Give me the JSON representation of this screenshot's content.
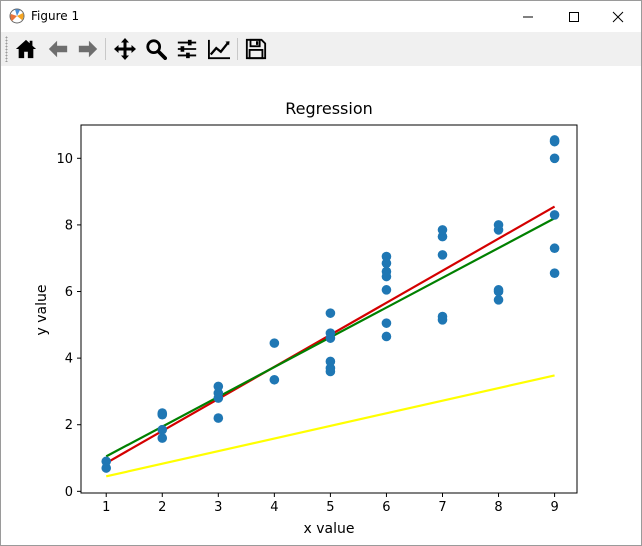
{
  "window": {
    "title": "Figure 1"
  },
  "toolbar": {
    "buttons": [
      {
        "icon": "home-icon",
        "tooltip": "Home"
      },
      {
        "icon": "back-arrow-icon",
        "tooltip": "Back"
      },
      {
        "icon": "forward-arrow-icon",
        "tooltip": "Forward"
      },
      {
        "icon": "pan-icon",
        "tooltip": "Pan"
      },
      {
        "icon": "zoom-icon",
        "tooltip": "Zoom"
      },
      {
        "icon": "subplots-icon",
        "tooltip": "Subplots"
      },
      {
        "icon": "edit-axis-icon",
        "tooltip": "Customize"
      },
      {
        "icon": "save-icon",
        "tooltip": "Save"
      }
    ]
  },
  "chart_data": {
    "type": "scatter",
    "title": "Regression",
    "xlabel": "x value",
    "ylabel": "y value",
    "xlim": [
      0.55,
      9.4
    ],
    "ylim": [
      -0.05,
      11.0
    ],
    "xticks": [
      1,
      2,
      3,
      4,
      5,
      6,
      7,
      8,
      9
    ],
    "yticks": [
      0,
      2,
      4,
      6,
      8,
      10
    ],
    "grid": false,
    "points": {
      "color": "#1f77b4",
      "data": [
        [
          1,
          0.7
        ],
        [
          1,
          0.9
        ],
        [
          2,
          1.6
        ],
        [
          2,
          1.85
        ],
        [
          2,
          2.3
        ],
        [
          2,
          2.35
        ],
        [
          3,
          2.2
        ],
        [
          3,
          2.8
        ],
        [
          3,
          2.95
        ],
        [
          3,
          3.15
        ],
        [
          4,
          3.35
        ],
        [
          4,
          4.45
        ],
        [
          5,
          3.6
        ],
        [
          5,
          3.7
        ],
        [
          5,
          3.9
        ],
        [
          5,
          4.6
        ],
        [
          5,
          4.75
        ],
        [
          5,
          5.35
        ],
        [
          6,
          4.65
        ],
        [
          6,
          5.05
        ],
        [
          6,
          6.05
        ],
        [
          6,
          6.45
        ],
        [
          6,
          6.6
        ],
        [
          6,
          6.85
        ],
        [
          6,
          7.05
        ],
        [
          7,
          5.15
        ],
        [
          7,
          5.25
        ],
        [
          7,
          7.1
        ],
        [
          7,
          7.65
        ],
        [
          7,
          7.85
        ],
        [
          8,
          5.75
        ],
        [
          8,
          6.0
        ],
        [
          8,
          6.05
        ],
        [
          8,
          7.85
        ],
        [
          8,
          8.0
        ],
        [
          9,
          6.55
        ],
        [
          9,
          7.3
        ],
        [
          9,
          8.3
        ],
        [
          9,
          10.0
        ],
        [
          9,
          10.5
        ],
        [
          9,
          10.55
        ]
      ]
    },
    "lines": [
      {
        "color": "#ffff00",
        "x": [
          1,
          9
        ],
        "y": [
          0.45,
          3.48
        ]
      },
      {
        "color": "#d40000",
        "x": [
          1,
          9
        ],
        "y": [
          0.85,
          8.55
        ]
      },
      {
        "color": "#008000",
        "x": [
          1,
          9
        ],
        "y": [
          1.05,
          8.2
        ]
      }
    ]
  }
}
